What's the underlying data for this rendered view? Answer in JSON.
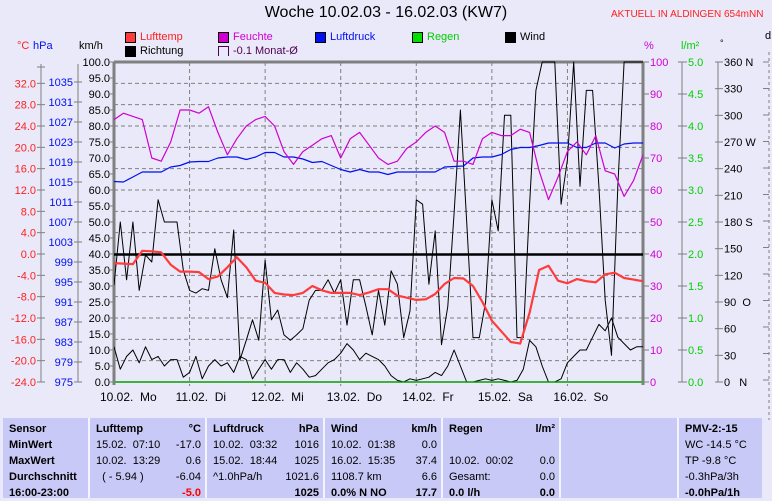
{
  "header": {
    "title": "Woche 10.02.03 - 16.02.03 (KW7)",
    "location": "AKTUELL IN ALDINGEN 654mNN"
  },
  "legend": [
    {
      "label": "Lufttemp",
      "color": "#ff3b3b",
      "text_color": "#ff2020"
    },
    {
      "label": "Feuchte",
      "color": "#d000d0",
      "text_color": "#d000d0"
    },
    {
      "label": "Luftdruck",
      "color": "#0010f0",
      "text_color": "#0010f0"
    },
    {
      "label": "Regen",
      "color": "#00e000",
      "text_color": "#00d000"
    },
    {
      "label": "Wind",
      "color": "#000000",
      "text_color": "#000000"
    },
    {
      "label": "Richtung",
      "color": "#000000",
      "text_color": "#000000"
    },
    {
      "label": "-0.1 Monat-Ø",
      "color": "#e9e9f9",
      "text_color": "#500050"
    }
  ],
  "units": {
    "temp": "°C",
    "pressure": "hPa",
    "wind": "km/h",
    "humidity": "%",
    "rain": "l/m²",
    "direction": "°",
    "extra": "d"
  },
  "chart_data": {
    "type": "line",
    "title": "Woche 10.02.03 - 16.02.03 (KW7)",
    "x_start": "10.02.03 00:00",
    "x_range_days": [
      0,
      7
    ],
    "x_ticks": [
      "10.02.  Mo",
      "11.02.  Di",
      "12.02.  Mi",
      "13.02.  Do",
      "14.02.  Fr",
      "15.02.  Sa",
      "16.02.  So"
    ],
    "grid": true,
    "axes": {
      "temp": {
        "range": [
          -24,
          36
        ],
        "ticks": [
          "32.0",
          "28.0",
          "24.0",
          "20.0",
          "16.0",
          "12.0",
          "8.0",
          "4.0",
          "0.0",
          "-4.0",
          "-8.0",
          "-12.0",
          "-16.0",
          "-20.0",
          "-24.0"
        ],
        "values": [
          32,
          28,
          24,
          20,
          16,
          12,
          8,
          4,
          0,
          -4,
          -8,
          -12,
          -16,
          -20,
          -24
        ]
      },
      "pressure": {
        "range": [
          975,
          1039
        ],
        "ticks": [
          "1035",
          "1031",
          "1027",
          "1023",
          "1019",
          "1015",
          "1011",
          "1007",
          "1003",
          "999",
          "995",
          "991",
          "987",
          "983",
          "979",
          "975"
        ],
        "values": [
          1035,
          1031,
          1027,
          1023,
          1019,
          1015,
          1011,
          1007,
          1003,
          999,
          995,
          991,
          987,
          983,
          979,
          975
        ]
      },
      "wind": {
        "range": [
          0,
          100
        ],
        "ticks": [
          "100.0",
          "95.0",
          "90.0",
          "85.0",
          "80.0",
          "75.0",
          "70.0",
          "65.0",
          "60.0",
          "55.0",
          "50.0",
          "45.0",
          "40.0",
          "35.0",
          "30.0",
          "25.0",
          "20.0",
          "15.0",
          "10.0",
          "5.0",
          "0.0"
        ],
        "values": [
          100,
          95,
          90,
          85,
          80,
          75,
          70,
          65,
          60,
          55,
          50,
          45,
          40,
          35,
          30,
          25,
          20,
          15,
          10,
          5,
          0
        ]
      },
      "humidity": {
        "range": [
          0,
          100
        ],
        "ticks": [
          "100",
          "90",
          "80",
          "70",
          "60",
          "50",
          "40",
          "30",
          "20",
          "10",
          "0"
        ],
        "values": [
          100,
          90,
          80,
          70,
          60,
          50,
          40,
          30,
          20,
          10,
          0
        ]
      },
      "rain": {
        "range": [
          0,
          5
        ],
        "ticks": [
          "5.0",
          "4.5",
          "4.0",
          "3.5",
          "3.0",
          "2.5",
          "2.0",
          "1.5",
          "1.0",
          "0.5",
          "0.0"
        ],
        "values": [
          5,
          4.5,
          4,
          3.5,
          3,
          2.5,
          2,
          1.5,
          1,
          0.5,
          0
        ]
      },
      "direction": {
        "range": [
          0,
          360
        ],
        "ticks": [
          "360 N",
          "330",
          "300",
          "270 W",
          "240",
          "210",
          "180 S",
          "150",
          "120",
          "90  O",
          "60",
          "30",
          "0   N"
        ],
        "values": [
          360,
          330,
          300,
          270,
          240,
          210,
          180,
          150,
          120,
          90,
          60,
          30,
          0
        ]
      }
    },
    "series": [
      {
        "name": "Lufttemp",
        "axis": "temp",
        "step_hours": 3,
        "values": [
          -1.7,
          -1.8,
          -1.9,
          0.6,
          0.5,
          0.3,
          -2,
          -3.3,
          -3.3,
          -3.4,
          -4.7,
          -4.2,
          -2.5,
          -0.6,
          -2.5,
          -5,
          -5.4,
          -7.3,
          -7.6,
          -7.7,
          -7.3,
          -6,
          -6.8,
          -7.3,
          -7.3,
          -7.3,
          -7.7,
          -7.2,
          -6.6,
          -6.6,
          -7.8,
          -8.2,
          -8.6,
          -8.5,
          -7.5,
          -5.6,
          -4.5,
          -4.6,
          -6,
          -9,
          -12.5,
          -14.5,
          -16.5,
          -16.8,
          -11,
          -3,
          -2.2,
          -5,
          -5.5,
          -4.7,
          -5.1,
          -5.3,
          -3.8,
          -3.5,
          -4.5,
          -4.8,
          -5.1
        ]
      },
      {
        "name": "Feuchte",
        "axis": "humidity",
        "step_hours": 3,
        "values": [
          82,
          84,
          83,
          82,
          70,
          69,
          75,
          85,
          85,
          84,
          86,
          78,
          71,
          76,
          80,
          82,
          83,
          80,
          72,
          68,
          72,
          74,
          76,
          77,
          70,
          76,
          78,
          74,
          70,
          68,
          69,
          73,
          75,
          78,
          80,
          78,
          69,
          69,
          68,
          76,
          78,
          77,
          77,
          79,
          78,
          66,
          57,
          64,
          72,
          75,
          71,
          77,
          66,
          65,
          58,
          63,
          71
        ]
      },
      {
        "name": "Luftdruck",
        "axis": "pressure",
        "step_hours": 3,
        "values": [
          1015.1,
          1015,
          1016,
          1017,
          1017,
          1017,
          1018,
          1018.3,
          1019,
          1019.1,
          1019.1,
          1019.8,
          1020,
          1020,
          1019.5,
          1020,
          1020.9,
          1020.9,
          1020,
          1020,
          1019.6,
          1018.9,
          1019.1,
          1018.3,
          1017.5,
          1017,
          1017.5,
          1017,
          1017,
          1016.5,
          1017,
          1017,
          1017,
          1017,
          1017,
          1018,
          1018.1,
          1018.2,
          1019.8,
          1020,
          1020,
          1020.5,
          1021.5,
          1021.9,
          1021.9,
          1022.3,
          1022.8,
          1022.8,
          1022.8,
          1021.9,
          1021.9,
          1022.8,
          1022.8,
          1021.8,
          1022.6,
          1022.8,
          1022.8
        ]
      },
      {
        "name": "Regen",
        "axis": "rain",
        "step_hours": 24,
        "values": [
          0,
          0,
          0,
          0,
          0,
          0,
          0,
          0
        ]
      },
      {
        "name": "Wind",
        "axis": "wind",
        "step_hours": 2,
        "values": [
          11,
          4,
          8,
          10,
          6,
          11,
          7,
          8,
          5,
          7,
          7,
          1.5,
          3,
          8,
          1,
          5,
          7,
          5,
          6,
          3,
          8,
          7,
          1,
          4,
          7,
          4,
          7,
          7,
          3,
          6,
          4,
          1.5,
          2,
          4,
          6,
          7,
          9,
          12,
          10,
          7,
          9,
          8,
          7,
          5,
          2,
          0.5,
          0,
          1,
          0.5,
          1,
          1.5,
          3,
          2,
          5,
          10,
          5,
          0,
          0,
          0.5,
          1,
          0.5,
          1,
          0.5,
          0,
          0.5,
          4,
          13,
          11,
          5,
          0,
          0,
          1,
          6,
          8,
          10,
          10,
          14,
          18,
          16,
          20,
          14,
          12,
          10,
          11,
          11
        ]
      },
      {
        "name": "Richtung",
        "axis": "direction",
        "step_hours": 2,
        "values": [
          109,
          180,
          115,
          180,
          103,
          143,
          135,
          205,
          180,
          180,
          180,
          126,
          103,
          100,
          105,
          103,
          150,
          115,
          95,
          171,
          25,
          47,
          70,
          47,
          137,
          70,
          81,
          53,
          47,
          53,
          60,
          92,
          103,
          103,
          115,
          100,
          115,
          64,
          115,
          115,
          85,
          53,
          103,
          64,
          125,
          110,
          50,
          80,
          205,
          200,
          110,
          170,
          42,
          85,
          190,
          306,
          180,
          50,
          50,
          90,
          205,
          170,
          300,
          300,
          50,
          50,
          200,
          328,
          360,
          360,
          360,
          200,
          250,
          360,
          220,
          328,
          328,
          220,
          92,
          30,
          220,
          360,
          360,
          360,
          360
        ]
      },
      {
        "name": "-0.1 Monat-Ø",
        "axis": "temp",
        "constant": -0.1
      }
    ]
  },
  "table": {
    "columns": [
      {
        "header": "Sensor",
        "unit": "",
        "rows": [
          [
            "MinWert",
            ""
          ],
          [
            "MaxWert",
            ""
          ],
          [
            "Durchschnitt",
            ""
          ],
          [
            "16:00-23:00",
            ""
          ]
        ]
      },
      {
        "header": "Lufttemp",
        "unit": "°C",
        "rows": [
          [
            "15.02.  07:10",
            "-17.0"
          ],
          [
            "10.02.  13:29",
            "0.6"
          ],
          [
            "  ( - 5.94 )",
            "-6.04"
          ],
          [
            "",
            "-5.0"
          ]
        ]
      },
      {
        "header": "Luftdruck",
        "unit": "hPa",
        "rows": [
          [
            "10.02.  03:32",
            "1016"
          ],
          [
            "15.02.  18:44",
            "1025"
          ],
          [
            "^1.0hPa/h",
            "1021.6"
          ],
          [
            "",
            "1025"
          ]
        ]
      },
      {
        "header": "Wind",
        "unit": "km/h",
        "rows": [
          [
            "10.02.  01:38",
            "0.0"
          ],
          [
            "16.02.  15:35",
            "37.4"
          ],
          [
            "1108.7 km",
            "6.6"
          ],
          [
            "0.0% N NO",
            "17.7"
          ]
        ]
      },
      {
        "header": "Regen",
        "unit": "l/m²",
        "rows": [
          [
            "",
            ""
          ],
          [
            "10.02.  00:02",
            "0.0"
          ],
          [
            "Gesamt:",
            "0.0"
          ],
          [
            "0.0 l/h",
            "0.0"
          ]
        ]
      },
      {
        "header": "",
        "unit": "",
        "rows": [
          [
            "",
            ""
          ],
          [
            "",
            ""
          ],
          [
            "",
            ""
          ],
          [
            "",
            ""
          ]
        ]
      },
      {
        "header": "PMV-2:-15",
        "unit": "",
        "rows": [
          [
            "WC -14.5 °C",
            ""
          ],
          [
            "TP -9.8 °C",
            ""
          ],
          [
            "-0.3hPa/3h",
            ""
          ],
          [
            "-0.0hPa/1h",
            ""
          ]
        ]
      }
    ]
  }
}
